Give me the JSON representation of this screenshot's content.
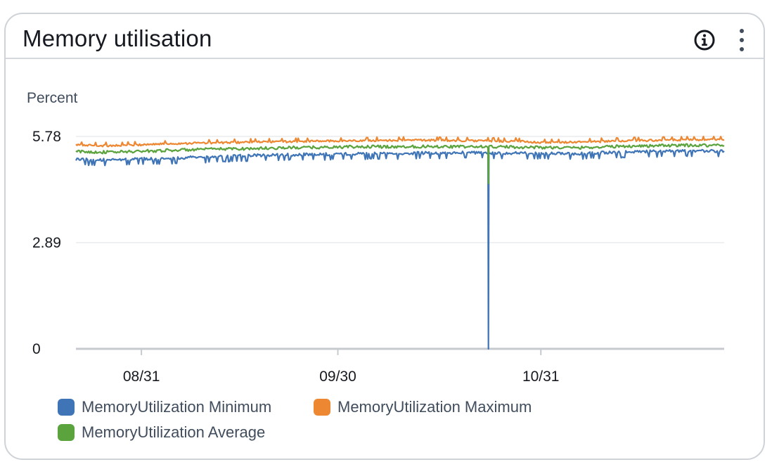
{
  "widget": {
    "title": "Memory utilisation",
    "info_icon": "info-icon",
    "more_icon": "vertical-ellipsis-icon"
  },
  "chart_data": {
    "type": "line",
    "title": "Memory utilisation",
    "ylabel": "Percent",
    "xlabel": "",
    "ylim": [
      0,
      5.78
    ],
    "yticks": [
      "5.78",
      "2.89",
      "0"
    ],
    "ytick_values": [
      5.78,
      2.89,
      0
    ],
    "x_range": [
      "2023-08-21",
      "2023-11-28"
    ],
    "xticks": [
      "08/31",
      "09/30",
      "10/31"
    ],
    "xtick_dates": [
      "2023-08-31",
      "2023-09-30",
      "2023-10-31"
    ],
    "grid": true,
    "legend_position": "bottom-left",
    "series": [
      {
        "name": "MemoryUtilization Minimum",
        "color": "#3f75b6",
        "values": [
          5.2,
          5.18,
          5.2,
          5.22,
          5.25,
          5.28,
          5.3,
          5.32,
          5.33,
          5.34,
          5.35,
          5.36,
          5.37,
          5.38,
          5.37,
          5.36,
          5.0,
          5.35,
          5.38,
          5.4,
          5.42,
          5.43,
          5.42
        ]
      },
      {
        "name": "MemoryUtilization Maximum",
        "color": "#ee8732",
        "values": [
          5.52,
          5.5,
          5.52,
          5.55,
          5.57,
          5.58,
          5.6,
          5.61,
          5.62,
          5.63,
          5.64,
          5.65,
          5.65,
          5.64,
          5.63,
          5.62,
          5.58,
          5.6,
          5.62,
          5.64,
          5.65,
          5.66,
          5.66
        ]
      },
      {
        "name": "MemoryUtilization Average",
        "color": "#5aa33d",
        "values": [
          5.37,
          5.35,
          5.37,
          5.4,
          5.42,
          5.44,
          5.45,
          5.47,
          5.48,
          5.49,
          5.5,
          5.5,
          5.51,
          5.5,
          5.5,
          5.49,
          4.5,
          5.47,
          5.5,
          5.52,
          5.53,
          5.54,
          5.54
        ]
      }
    ],
    "annotations": [
      {
        "series": "MemoryUtilization Minimum",
        "date": "2023-10-23",
        "value": 0
      }
    ]
  }
}
